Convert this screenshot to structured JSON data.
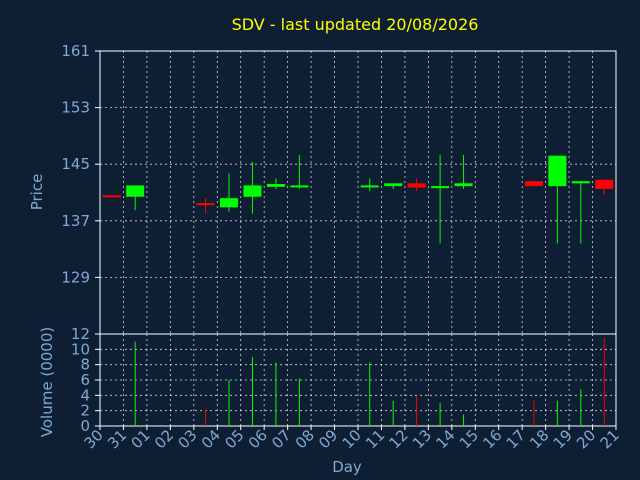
{
  "chart_data": [
    {
      "type": "candlestick",
      "title": "SDV - last updated 20/08/2026",
      "xlabel": "",
      "ylabel": "Price",
      "ylim": [
        121,
        161
      ],
      "yticks": [
        129,
        137,
        145,
        153,
        161
      ],
      "grid": true,
      "colors": {
        "up": "#00ff00",
        "down": "#ff0000",
        "background": "#0f1f33",
        "text": "#7fa8d6",
        "title": "#ffff00",
        "grid": "#ffffff"
      },
      "categories": [
        "30",
        "31",
        "01",
        "02",
        "03",
        "04",
        "05",
        "06",
        "07",
        "08",
        "09",
        "10",
        "11",
        "12",
        "13",
        "14",
        "15",
        "16",
        "17",
        "18",
        "19",
        "20",
        "21"
      ],
      "candles": [
        {
          "day": "30",
          "open": 140.6,
          "close": 140.4,
          "high": 140.6,
          "low": 140.4,
          "dir": "down"
        },
        {
          "day": "31",
          "open": 140.4,
          "close": 142.0,
          "high": 142.0,
          "low": 138.5,
          "dir": "up"
        },
        {
          "day": "03",
          "open": 139.5,
          "close": 139.3,
          "high": 140.2,
          "low": 138.0,
          "dir": "down"
        },
        {
          "day": "04",
          "open": 138.9,
          "close": 140.2,
          "high": 143.7,
          "low": 138.3,
          "dir": "up"
        },
        {
          "day": "05",
          "open": 140.4,
          "close": 142.0,
          "high": 145.3,
          "low": 138.0,
          "dir": "up"
        },
        {
          "day": "06",
          "open": 141.8,
          "close": 142.2,
          "high": 143.0,
          "low": 141.5,
          "dir": "up"
        },
        {
          "day": "07",
          "open": 141.8,
          "close": 142.0,
          "high": 146.3,
          "low": 141.5,
          "dir": "up"
        },
        {
          "day": "10",
          "open": 141.8,
          "close": 142.0,
          "high": 143.0,
          "low": 141.2,
          "dir": "up"
        },
        {
          "day": "11",
          "open": 141.9,
          "close": 142.3,
          "high": 142.3,
          "low": 141.5,
          "dir": "up"
        },
        {
          "day": "12",
          "open": 142.3,
          "close": 141.7,
          "high": 143.0,
          "low": 141.2,
          "dir": "down"
        },
        {
          "day": "13",
          "open": 141.7,
          "close": 141.9,
          "high": 146.3,
          "low": 133.8,
          "dir": "up"
        },
        {
          "day": "14",
          "open": 141.9,
          "close": 142.3,
          "high": 146.3,
          "low": 141.5,
          "dir": "up"
        },
        {
          "day": "17",
          "open": 142.6,
          "close": 141.9,
          "high": 142.6,
          "low": 141.9,
          "dir": "down"
        },
        {
          "day": "18",
          "open": 141.9,
          "close": 146.2,
          "high": 146.2,
          "low": 133.8,
          "dir": "up"
        },
        {
          "day": "19",
          "open": 142.3,
          "close": 142.6,
          "high": 142.6,
          "low": 133.8,
          "dir": "up"
        },
        {
          "day": "20",
          "open": 142.8,
          "close": 141.5,
          "high": 142.8,
          "low": 140.7,
          "dir": "down"
        }
      ]
    },
    {
      "type": "bar",
      "xlabel": "Day",
      "ylabel": "Volume (0000)",
      "ylim": [
        0,
        12
      ],
      "yticks": [
        0,
        2,
        4,
        6,
        8,
        10,
        12
      ],
      "grid": true,
      "categories": [
        "30",
        "31",
        "01",
        "02",
        "03",
        "04",
        "05",
        "06",
        "07",
        "08",
        "09",
        "10",
        "11",
        "12",
        "13",
        "14",
        "15",
        "16",
        "17",
        "18",
        "19",
        "20",
        "21"
      ],
      "values": [
        {
          "day": "31",
          "value": 11.0,
          "dir": "up"
        },
        {
          "day": "03",
          "value": 2.2,
          "dir": "down"
        },
        {
          "day": "04",
          "value": 6.0,
          "dir": "up"
        },
        {
          "day": "05",
          "value": 9.0,
          "dir": "up"
        },
        {
          "day": "06",
          "value": 8.3,
          "dir": "up"
        },
        {
          "day": "07",
          "value": 6.2,
          "dir": "up"
        },
        {
          "day": "10",
          "value": 8.3,
          "dir": "up"
        },
        {
          "day": "11",
          "value": 3.3,
          "dir": "up"
        },
        {
          "day": "12",
          "value": 4.0,
          "dir": "down"
        },
        {
          "day": "13",
          "value": 3.0,
          "dir": "up"
        },
        {
          "day": "14",
          "value": 1.5,
          "dir": "up"
        },
        {
          "day": "17",
          "value": 3.3,
          "dir": "down"
        },
        {
          "day": "18",
          "value": 3.3,
          "dir": "up"
        },
        {
          "day": "19",
          "value": 4.8,
          "dir": "up"
        },
        {
          "day": "20",
          "value": 11.5,
          "dir": "down"
        }
      ]
    }
  ]
}
